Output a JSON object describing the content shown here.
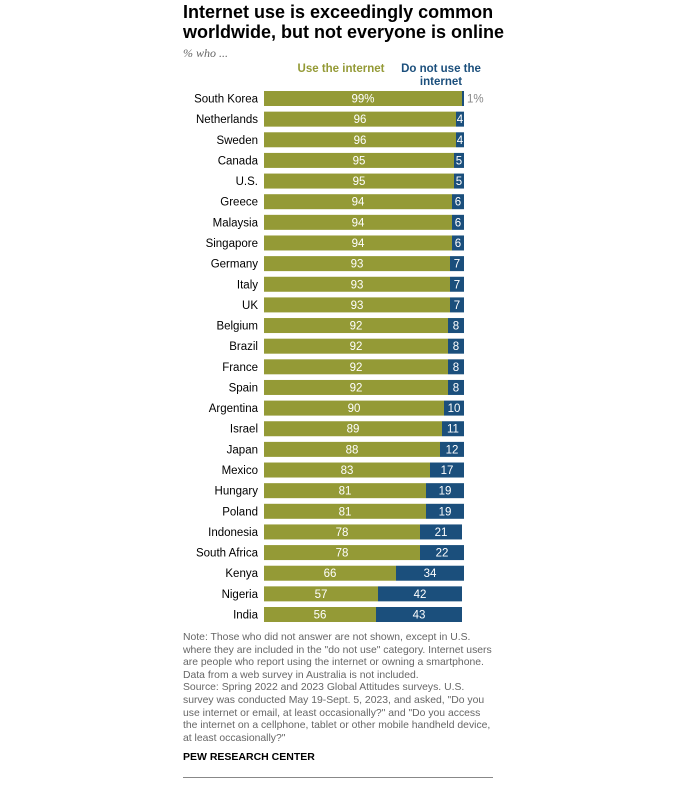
{
  "title": "Internet use is exceedingly common worldwide, but not everyone is online",
  "subtitle": "% who ...",
  "note": "Note: Those who did not answer are not shown, except in U.S. where they are included in the \"do not use\" category. Internet users are people who report using the internet or owning a smartphone. Data from a web survey in Australia is not included.",
  "source": "Source: Spring 2022 and 2023 Global Attitudes surveys. U.S. survey was conducted May 19-Sept. 5, 2023, and asked, \"Do you use internet or email, at least occasionally?\" and \"Do you access the internet on a cellphone, tablet or other mobile handheld device, at least occasionally?\"",
  "brand": "PEW RESEARCH CENTER",
  "colors": {
    "use": "#949a36",
    "not_use": "#1b4f7c"
  },
  "chart_data": {
    "type": "bar",
    "orientation": "horizontal-stacked",
    "xlim": [
      0,
      100
    ],
    "categories": [
      "South Korea",
      "Netherlands",
      "Sweden",
      "Canada",
      "U.S.",
      "Greece",
      "Malaysia",
      "Singapore",
      "Germany",
      "Italy",
      "UK",
      "Belgium",
      "Brazil",
      "France",
      "Spain",
      "Argentina",
      "Israel",
      "Japan",
      "Mexico",
      "Hungary",
      "Poland",
      "Indonesia",
      "South Africa",
      "Kenya",
      "Nigeria",
      "India"
    ],
    "series": [
      {
        "name": "Use the internet",
        "values": [
          99,
          96,
          96,
          95,
          95,
          94,
          94,
          94,
          93,
          93,
          93,
          92,
          92,
          92,
          92,
          90,
          89,
          88,
          83,
          81,
          81,
          78,
          78,
          66,
          57,
          56
        ]
      },
      {
        "name": "Do not use the internet",
        "values": [
          1,
          4,
          4,
          5,
          5,
          6,
          6,
          6,
          7,
          7,
          7,
          8,
          8,
          8,
          8,
          10,
          11,
          12,
          17,
          19,
          19,
          21,
          22,
          34,
          42,
          43
        ]
      }
    ],
    "first_label_suffix": "%"
  }
}
